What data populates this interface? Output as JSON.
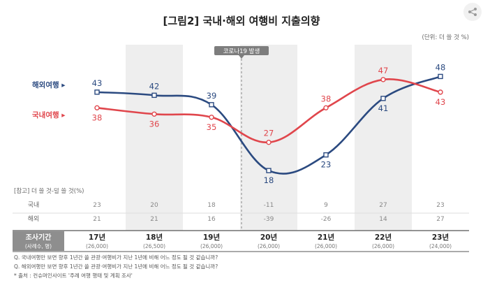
{
  "page": {
    "title": "[그림2] 국내·해외 여행비 지출의향",
    "unit": "(단위: 더 쓸 것 %)",
    "covid_label": "코로나19 발생",
    "share_icon": "share-icon"
  },
  "colors": {
    "overseas": "#2b4a80",
    "domestic": "#e0464c",
    "band": "#eeeeee",
    "header_bg": "#8e8e8e"
  },
  "chart_data": {
    "type": "line",
    "title": "[그림2] 국내·해외 여행비 지출의향",
    "unit": "(단위: 더 쓸 것 %)",
    "categories": [
      "17년",
      "18년",
      "19년",
      "20년",
      "21년",
      "22년",
      "23년"
    ],
    "sample_sizes": [
      "(26,000)",
      "(26,500)",
      "(26,000)",
      "(26,000)",
      "(26,000)",
      "(26,000)",
      "(24,000)"
    ],
    "series": [
      {
        "name": "해외여행",
        "legend": "해외여행 ▸",
        "color": "#2b4a80",
        "values": [
          43,
          42,
          39,
          18,
          23,
          41,
          48
        ]
      },
      {
        "name": "국내여행",
        "legend": "국내여행 ▸",
        "color": "#e0464c",
        "values": [
          38,
          36,
          35,
          27,
          38,
          47,
          43
        ]
      }
    ],
    "reference_title": "[참고] 더 쓸 것-덜 쓸 것(%)",
    "reference_rows": [
      {
        "label": "국내",
        "values": [
          "23",
          "20",
          "18",
          "-11",
          "9",
          "27",
          "23"
        ]
      },
      {
        "label": "해외",
        "values": [
          "21",
          "21",
          "16",
          "-39",
          "-26",
          "14",
          "27"
        ]
      }
    ],
    "period_header": "조사기간",
    "period_sub": "(사례수, 명)",
    "highlight_bands": [
      "18년",
      "20년",
      "22년"
    ],
    "annotation": {
      "label": "코로나19 발생",
      "between": [
        "19년",
        "20년"
      ]
    },
    "ylim": [
      10,
      55
    ]
  },
  "footnotes": [
    "Q. 국내여행만 보면 향후 1년간 쓸 관광·여행비가 지난 1년에 비해 어느 정도 될 것 같습니까?",
    "Q. 해외여행만 보면 향후 1년간 쓸 관광·여행비가 지난 1년에 비해 어느 정도 될 것 같습니까?",
    "* 출처 : 컨슈머인사이트 '주례 여행 행태 및 계획 조사'"
  ]
}
